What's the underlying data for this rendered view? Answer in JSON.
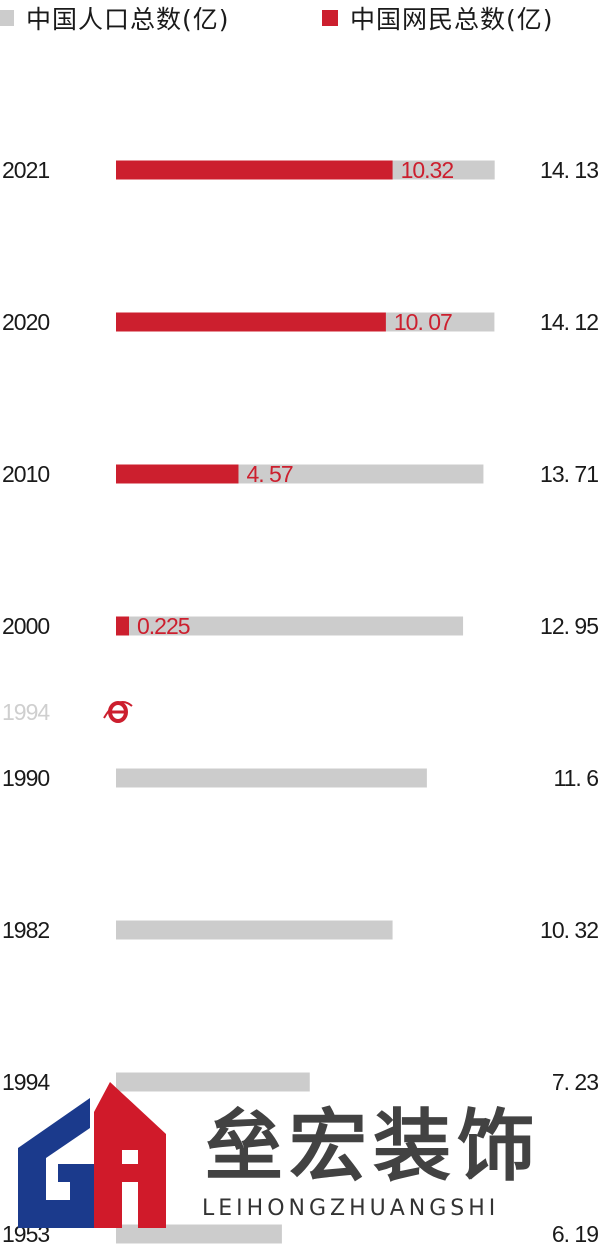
{
  "legend": {
    "population_label": "中国人口总数(亿)",
    "netizen_label": "中国网民总数(亿)"
  },
  "colors": {
    "population": "#cccccc",
    "netizen": "#cc1f2e",
    "marker_year": "#cfcfcf"
  },
  "chart_data": {
    "type": "bar",
    "categories": [
      "2021",
      "2020",
      "2010",
      "2000",
      "1990",
      "1982",
      "1994",
      "1953"
    ],
    "series": [
      {
        "name": "中国人口总数(亿)",
        "values": [
          14.13,
          14.12,
          13.71,
          12.95,
          11.6,
          10.32,
          7.23,
          6.19
        ],
        "labels": [
          "14. 13",
          "14. 12",
          "13. 71",
          "12. 95",
          "11. 6",
          "10. 32",
          "7. 23",
          "6. 19"
        ]
      },
      {
        "name": "中国网民总数(亿)",
        "values": [
          10.32,
          10.07,
          4.57,
          0.225,
          null,
          null,
          null,
          null
        ],
        "labels": [
          "10.32",
          "10. 07",
          "4. 57",
          "0.225",
          "",
          "",
          "",
          ""
        ]
      }
    ],
    "annotation": {
      "year": "1994",
      "icon": "internet-explorer-icon",
      "after_category": "2000"
    }
  },
  "watermark": {
    "name": "垒宏装饰",
    "subtitle": "LEIHONGZHUANGSHI"
  }
}
